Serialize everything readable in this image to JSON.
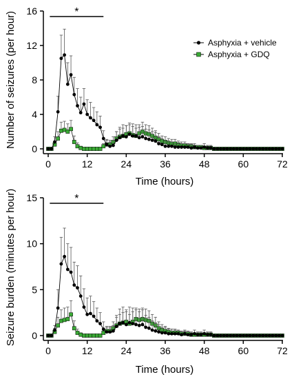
{
  "chart_data": [
    {
      "type": "line",
      "xlabel": "Time (hours)",
      "ylabel": "Number of seizures (per hour)",
      "xlim": [
        0,
        72
      ],
      "ylim": [
        0,
        16
      ],
      "xticks": [
        0,
        12,
        24,
        36,
        48,
        60,
        72
      ],
      "yticks": [
        0,
        4,
        8,
        12,
        16
      ],
      "grid": false,
      "legend_position": "top-right",
      "significance": {
        "label": "*",
        "x_range": [
          0.5,
          17
        ]
      },
      "series": [
        {
          "name": "Asphyxia + vehicle",
          "color": "#000000",
          "marker": "circle",
          "x": [
            0,
            1,
            2,
            3,
            4,
            5,
            6,
            7,
            8,
            9,
            10,
            11,
            12,
            13,
            14,
            15,
            16,
            17,
            18,
            19,
            20,
            21,
            22,
            23,
            24,
            25,
            26,
            27,
            28,
            29,
            30,
            31,
            32,
            33,
            34,
            35,
            36,
            37,
            38,
            39,
            40,
            41,
            42,
            43,
            44,
            45,
            46,
            47,
            48,
            49,
            50,
            51,
            52,
            53,
            54,
            55,
            56,
            57,
            58,
            59,
            60,
            61,
            62,
            63,
            64,
            65,
            66,
            67,
            68,
            69,
            70,
            71,
            72
          ],
          "y": [
            0,
            0,
            0.8,
            4.3,
            10.5,
            10.9,
            7.5,
            8.6,
            6.3,
            5,
            4.2,
            5.2,
            4,
            3.6,
            3.3,
            2.8,
            2.5,
            1.2,
            0.5,
            0.3,
            0.4,
            1,
            1.3,
            1.5,
            1.4,
            1.7,
            1.5,
            1.5,
            1.3,
            1.4,
            1.2,
            1.1,
            1,
            0.9,
            0.6,
            0.5,
            0.3,
            0.3,
            0.3,
            0.2,
            0.2,
            0.2,
            0.2,
            0.2,
            0.1,
            0.2,
            0.1,
            0.1,
            0.2,
            0.1,
            0.1,
            0,
            0,
            0,
            0,
            0,
            0,
            0,
            0,
            0,
            0,
            0,
            0,
            0,
            0,
            0,
            0,
            0,
            0,
            0,
            0,
            0,
            0
          ],
          "error": [
            0,
            0,
            0.6,
            1.8,
            2.7,
            3,
            2.5,
            2.2,
            2,
            2,
            1.8,
            1.8,
            1.7,
            1.8,
            1.5,
            1.5,
            1.3,
            0.9,
            0.6,
            0.5,
            0.6,
            1,
            1.2,
            1.3,
            1.3,
            1.3,
            1.4,
            1.3,
            1.2,
            1.2,
            1.1,
            1.1,
            1,
            1,
            0.8,
            0.7,
            0.6,
            0.5,
            0.5,
            0.4,
            0.4,
            0.4,
            0.4,
            0.4,
            0.3,
            0.4,
            0.3,
            0.3,
            0.4,
            0.3,
            0.3,
            0,
            0,
            0,
            0,
            0,
            0,
            0,
            0,
            0,
            0,
            0,
            0,
            0,
            0,
            0,
            0,
            0,
            0,
            0,
            0,
            0,
            0
          ]
        },
        {
          "name": "Asphyxia + GDQ",
          "color": "#3aaa35",
          "marker": "square",
          "x": [
            0,
            1,
            2,
            3,
            4,
            5,
            6,
            7,
            8,
            9,
            10,
            11,
            12,
            13,
            14,
            15,
            16,
            17,
            18,
            19,
            20,
            21,
            22,
            23,
            24,
            25,
            26,
            27,
            28,
            29,
            30,
            31,
            32,
            33,
            34,
            35,
            36,
            37,
            38,
            39,
            40,
            41,
            42,
            43,
            44,
            45,
            46,
            47,
            48,
            49,
            50,
            51,
            52,
            53,
            54,
            55,
            56,
            57,
            58,
            59,
            60,
            61,
            62,
            63,
            64,
            65,
            66,
            67,
            68,
            69,
            70,
            71,
            72
          ],
          "y": [
            0,
            0,
            0.5,
            1.2,
            2.1,
            2.2,
            2,
            2.3,
            0.8,
            0.3,
            0.1,
            0,
            0,
            0,
            0,
            0,
            0,
            0.3,
            0.5,
            0.5,
            0.8,
            1.2,
            1.4,
            1.5,
            1.7,
            1.8,
            1.6,
            1.5,
            1.8,
            2,
            1.8,
            1.7,
            1.5,
            1.3,
            1.1,
            0.9,
            0.8,
            0.7,
            0.6,
            0.6,
            0.5,
            0.4,
            0.4,
            0.3,
            0.3,
            0.2,
            0.2,
            0.2,
            0.1,
            0.1,
            0.1,
            0,
            0,
            0,
            0,
            0,
            0,
            0,
            0,
            0,
            0,
            0,
            0,
            0,
            0,
            0,
            0,
            0,
            0,
            0,
            0,
            0,
            0
          ],
          "error": [
            0,
            0,
            0.4,
            0.8,
            1,
            1,
            0.9,
            1,
            0.7,
            0.4,
            0.2,
            0,
            0,
            0,
            0,
            0,
            0,
            0.3,
            0.5,
            0.5,
            0.6,
            0.8,
            0.9,
            0.9,
            1,
            1,
            1,
            0.9,
            1,
            1.1,
            1,
            1,
            0.9,
            0.8,
            0.7,
            0.6,
            0.6,
            0.5,
            0.5,
            0.5,
            0.4,
            0.4,
            0.4,
            0.3,
            0.3,
            0.2,
            0.2,
            0.2,
            0.2,
            0.2,
            0.2,
            0,
            0,
            0,
            0,
            0,
            0,
            0,
            0,
            0,
            0,
            0,
            0,
            0,
            0,
            0,
            0,
            0,
            0,
            0,
            0,
            0,
            0
          ]
        }
      ]
    },
    {
      "type": "line",
      "xlabel": "Time (hours)",
      "ylabel": "Seizure burden (minutes per hour)",
      "xlim": [
        0,
        72
      ],
      "ylim": [
        0,
        15
      ],
      "xticks": [
        0,
        12,
        24,
        36,
        48,
        60,
        72
      ],
      "yticks": [
        0,
        5,
        10,
        15
      ],
      "grid": false,
      "significance": {
        "label": "*",
        "x_range": [
          0.5,
          17
        ]
      },
      "series": [
        {
          "name": "Asphyxia + vehicle",
          "color": "#000000",
          "marker": "circle",
          "x": [
            0,
            1,
            2,
            3,
            4,
            5,
            6,
            7,
            8,
            9,
            10,
            11,
            12,
            13,
            14,
            15,
            16,
            17,
            18,
            19,
            20,
            21,
            22,
            23,
            24,
            25,
            26,
            27,
            28,
            29,
            30,
            31,
            32,
            33,
            34,
            35,
            36,
            37,
            38,
            39,
            40,
            41,
            42,
            43,
            44,
            45,
            46,
            47,
            48,
            49,
            50,
            51,
            52,
            53,
            54,
            55,
            56,
            57,
            58,
            59,
            60,
            61,
            62,
            63,
            64,
            65,
            66,
            67,
            68,
            69,
            70,
            71,
            72
          ],
          "y": [
            0,
            0,
            0.6,
            3,
            7.8,
            8.6,
            7.2,
            6.9,
            5.5,
            5.2,
            4.3,
            3.1,
            2.3,
            2.4,
            2.1,
            1.6,
            1.3,
            0.7,
            0.4,
            0.4,
            0.5,
            1,
            1.3,
            1.4,
            1.2,
            1.4,
            1.3,
            1.2,
            1.1,
            1.2,
            0.9,
            0.8,
            0.6,
            0.5,
            0.4,
            0.3,
            0.3,
            0.2,
            0.2,
            0.2,
            0.2,
            0.1,
            0.2,
            0.1,
            0.1,
            0.2,
            0.1,
            0.1,
            0.2,
            0.1,
            0.1,
            0,
            0,
            0,
            0,
            0,
            0,
            0,
            0,
            0,
            0,
            0,
            0,
            0,
            0,
            0,
            0,
            0,
            0,
            0,
            0,
            0,
            0
          ],
          "error": [
            0,
            0,
            0.5,
            2,
            2.9,
            3.1,
            2.8,
            2.7,
            2.5,
            2.4,
            2.2,
            2,
            1.8,
            1.9,
            1.6,
            1.4,
            1.2,
            0.8,
            0.5,
            0.5,
            0.6,
            1.2,
            1.6,
            1.7,
            1.6,
            1.7,
            1.7,
            1.6,
            1.5,
            1.6,
            1.3,
            1.2,
            1,
            0.9,
            0.8,
            0.6,
            0.6,
            0.5,
            0.5,
            0.4,
            0.4,
            0.3,
            0.4,
            0.3,
            0.3,
            0.4,
            0.3,
            0.3,
            0.4,
            0.3,
            0.3,
            0,
            0,
            0,
            0,
            0,
            0,
            0,
            0,
            0,
            0,
            0,
            0,
            0,
            0,
            0,
            0,
            0,
            0,
            0,
            0,
            0,
            0
          ]
        },
        {
          "name": "Asphyxia + GDQ",
          "color": "#3aaa35",
          "marker": "square",
          "x": [
            0,
            1,
            2,
            3,
            4,
            5,
            6,
            7,
            8,
            9,
            10,
            11,
            12,
            13,
            14,
            15,
            16,
            17,
            18,
            19,
            20,
            21,
            22,
            23,
            24,
            25,
            26,
            27,
            28,
            29,
            30,
            31,
            32,
            33,
            34,
            35,
            36,
            37,
            38,
            39,
            40,
            41,
            42,
            43,
            44,
            45,
            46,
            47,
            48,
            49,
            50,
            51,
            52,
            53,
            54,
            55,
            56,
            57,
            58,
            59,
            60,
            61,
            62,
            63,
            64,
            65,
            66,
            67,
            68,
            69,
            70,
            71,
            72
          ],
          "y": [
            0,
            0,
            0.4,
            1.1,
            1.6,
            1.7,
            1.8,
            2.3,
            0.8,
            0.3,
            0.1,
            0,
            0,
            0,
            0,
            0,
            0,
            0.3,
            0.5,
            0.5,
            0.8,
            1.1,
            1.3,
            1.4,
            1.5,
            1.3,
            1.5,
            1.8,
            1.7,
            1.8,
            1.7,
            1.6,
            1.3,
            1.1,
            0.8,
            0.6,
            0.5,
            0.4,
            0.3,
            0.3,
            0.3,
            0.2,
            0.2,
            0.2,
            0.1,
            0.1,
            0.1,
            0.1,
            0.1,
            0.1,
            0.1,
            0,
            0,
            0,
            0,
            0,
            0,
            0,
            0,
            0,
            0,
            0,
            0,
            0,
            0,
            0,
            0,
            0,
            0,
            0,
            0,
            0,
            0
          ],
          "error": [
            0,
            0,
            0.4,
            0.9,
            1.2,
            1.3,
            1.3,
            1.5,
            0.8,
            0.4,
            0.2,
            0,
            0,
            0,
            0,
            0,
            0,
            0.3,
            0.5,
            0.5,
            0.7,
            0.9,
            1,
            1.1,
            1.1,
            1,
            1.1,
            1.2,
            1.2,
            1.2,
            1.2,
            1.1,
            1,
            0.9,
            0.7,
            0.6,
            0.5,
            0.4,
            0.4,
            0.4,
            0.3,
            0.3,
            0.3,
            0.3,
            0.2,
            0.2,
            0.2,
            0.2,
            0.2,
            0.2,
            0.2,
            0,
            0,
            0,
            0,
            0,
            0,
            0,
            0,
            0,
            0,
            0,
            0,
            0,
            0,
            0,
            0,
            0,
            0,
            0,
            0,
            0,
            0
          ]
        }
      ]
    }
  ]
}
